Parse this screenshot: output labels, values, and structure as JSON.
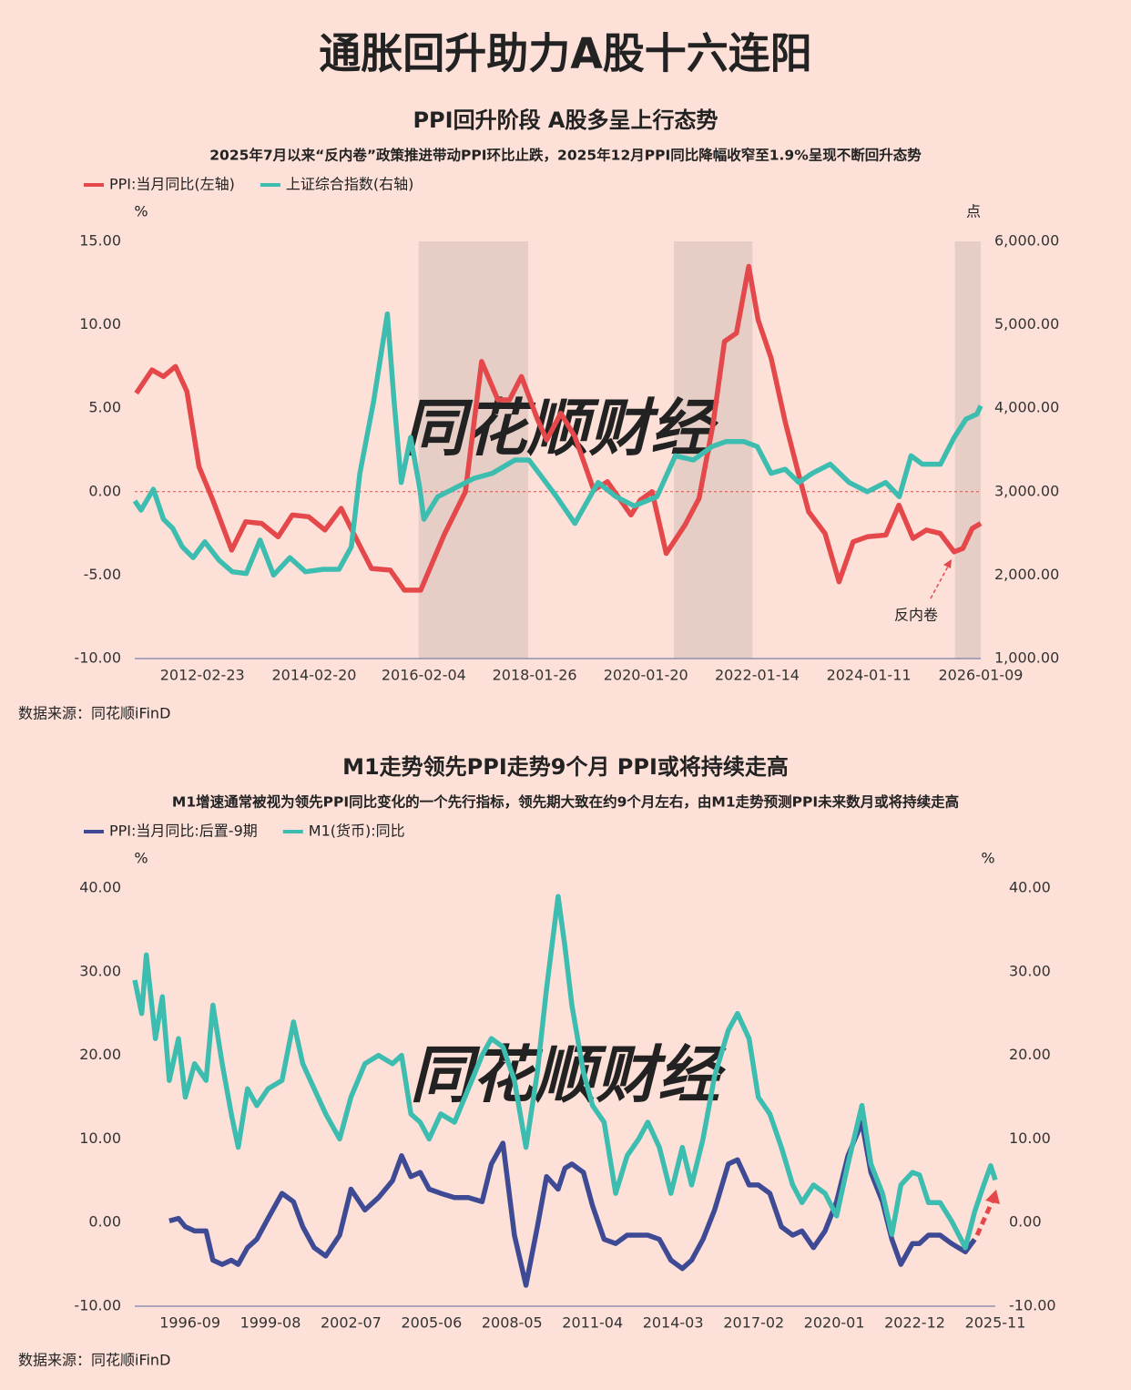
{
  "title": "通胀回升助力A股十六连阳",
  "chart_data": [
    {
      "type": "line",
      "title": "PPI回升阶段 A股多呈上行态势",
      "subtitle": "2025年7月以来“反内卷”政策推进带动PPI环比止跌，2025年12月PPI同比降幅收窄至1.9%呈现不断回升态势",
      "y_unit": "%",
      "y2_unit": "点",
      "watermark": "同花顺财经",
      "annotation": "反内卷",
      "source": "数据来源：同花顺iFinD",
      "zero_line": true,
      "xlim": [
        "2010-12-10",
        "2026-01-09"
      ],
      "xticks": [
        "2012-02-23",
        "2014-02-20",
        "2016-02-04",
        "2018-01-26",
        "2020-01-20",
        "2022-01-14",
        "2024-01-11",
        "2026-01-09"
      ],
      "ylim": [
        -10,
        15
      ],
      "yticks": [
        {
          "value": -10,
          "label": "-10.00"
        },
        {
          "value": -5,
          "label": "-5.00"
        },
        {
          "value": 0,
          "label": "0.00"
        },
        {
          "value": 5,
          "label": "5.00"
        },
        {
          "value": 10,
          "label": "10.00"
        },
        {
          "value": 15,
          "label": "15.00"
        }
      ],
      "y2lim": [
        1000,
        6000
      ],
      "y2ticks": [
        {
          "value": 1000,
          "label": "1,000.00"
        },
        {
          "value": 2000,
          "label": "2,000.00"
        },
        {
          "value": 3000,
          "label": "3,000.00"
        },
        {
          "value": 4000,
          "label": "4,000.00"
        },
        {
          "value": 5000,
          "label": "5,000.00"
        },
        {
          "value": 6000,
          "label": "6,000.00"
        }
      ],
      "shaded_periods": [
        [
          "2016-01-01",
          "2017-12-15"
        ],
        [
          "2020-07-20",
          "2021-12-15"
        ],
        [
          "2025-07-25",
          "2026-01-09"
        ]
      ],
      "series": [
        {
          "name": "PPI:当月同比(左轴)",
          "color": "#e5484a",
          "axis": "y",
          "x": [
            "2010-12-20",
            "2011-04-01",
            "2011-06-15",
            "2011-09-01",
            "2011-11-15",
            "2012-02-01",
            "2012-05-01",
            "2012-09-01",
            "2012-12-01",
            "2013-03-15",
            "2013-07-01",
            "2013-10-01",
            "2014-01-15",
            "2014-05-01",
            "2014-08-15",
            "2014-12-01",
            "2015-03-01",
            "2015-07-01",
            "2015-10-01",
            "2016-01-15",
            "2016-06-15",
            "2016-11-01",
            "2017-02-15",
            "2017-06-01",
            "2017-08-15",
            "2017-11-01",
            "2018-02-15",
            "2018-04-15",
            "2018-07-15",
            "2018-10-15",
            "2019-02-15",
            "2019-05-15",
            "2019-10-15",
            "2019-12-15",
            "2020-03-01",
            "2020-06-01",
            "2020-10-01",
            "2021-01-01",
            "2021-04-01",
            "2021-06-15",
            "2021-09-01",
            "2021-11-20",
            "2022-01-20",
            "2022-04-15",
            "2022-07-15",
            "2022-10-15",
            "2022-12-15",
            "2023-04-01",
            "2023-07-01",
            "2023-10-01",
            "2024-01-01",
            "2024-05-01",
            "2024-07-25",
            "2024-10-25",
            "2025-01-20",
            "2025-04-20",
            "2025-07-20",
            "2025-09-15",
            "2025-11-15",
            "2026-01-09"
          ],
          "values": [
            5.9,
            7.3,
            6.9,
            7.5,
            6.0,
            1.5,
            -0.5,
            -3.5,
            -1.8,
            -1.9,
            -2.7,
            -1.4,
            -1.5,
            -2.3,
            -1.0,
            -3.0,
            -4.6,
            -4.7,
            -5.9,
            -5.9,
            -2.6,
            0.0,
            7.8,
            5.5,
            5.5,
            6.9,
            4.3,
            3.1,
            4.7,
            3.3,
            0.1,
            0.6,
            -1.4,
            -0.5,
            0.0,
            -3.7,
            -2.0,
            -0.4,
            4.0,
            9.0,
            9.5,
            13.5,
            10.3,
            8.0,
            4.2,
            0.9,
            -1.2,
            -2.5,
            -5.4,
            -3.0,
            -2.7,
            -2.6,
            -0.8,
            -2.8,
            -2.3,
            -2.5,
            -3.6,
            -3.4,
            -2.2,
            -1.9
          ]
        },
        {
          "name": "上证综合指数(右轴)",
          "color": "#3dbdaf",
          "axis": "y2",
          "x": [
            "2010-12-10",
            "2011-01-20",
            "2011-04-10",
            "2011-06-15",
            "2011-08-15",
            "2011-10-15",
            "2011-12-25",
            "2012-03-10",
            "2012-06-10",
            "2012-09-05",
            "2012-12-05",
            "2013-03-05",
            "2013-06-01",
            "2013-09-15",
            "2013-12-25",
            "2014-04-20",
            "2014-08-01",
            "2014-10-20",
            "2014-12-15",
            "2015-03-15",
            "2015-06-12",
            "2015-07-25",
            "2015-09-10",
            "2015-11-10",
            "2016-01-08",
            "2016-02-05",
            "2016-05-05",
            "2016-09-01",
            "2016-12-28",
            "2017-04-25",
            "2017-09-20",
            "2017-12-20",
            "2018-03-20",
            "2018-06-18",
            "2018-10-15",
            "2019-03-15",
            "2019-07-10",
            "2019-11-05",
            "2020-04-01",
            "2020-07-30",
            "2020-11-25",
            "2021-03-25",
            "2021-06-25",
            "2021-10-20",
            "2022-01-15",
            "2022-04-15",
            "2022-07-15",
            "2022-10-12",
            "2023-01-08",
            "2023-05-05",
            "2023-09-05",
            "2024-01-01",
            "2024-04-30",
            "2024-07-28",
            "2024-10-12",
            "2024-12-25",
            "2025-04-22",
            "2025-07-20",
            "2025-10-05",
            "2025-12-15",
            "2026-01-09"
          ],
          "values": [
            2890,
            2780,
            3030,
            2670,
            2560,
            2340,
            2210,
            2400,
            2180,
            2040,
            2020,
            2420,
            2000,
            2210,
            2040,
            2070,
            2070,
            2340,
            3220,
            4090,
            5130,
            4090,
            3110,
            3650,
            3050,
            2670,
            2940,
            3050,
            3160,
            3220,
            3380,
            3380,
            3160,
            2940,
            2620,
            3110,
            2940,
            2830,
            2940,
            3430,
            3380,
            3540,
            3600,
            3600,
            3540,
            3220,
            3270,
            3110,
            3220,
            3330,
            3110,
            3000,
            3110,
            2940,
            3430,
            3330,
            3330,
            3650,
            3870,
            3930,
            4030
          ]
        }
      ]
    },
    {
      "type": "line",
      "title": "M1走势领先PPI走势9个月 PPI或将持续走高",
      "subtitle": "M1增速通常被视为领先PPI同比变化的一个先行指标，领先期大致在约9个月左右，由M1走势预测PPI未来数月或将持续走高",
      "y_unit": "%",
      "y2_unit": "%",
      "watermark": "同花顺财经",
      "source": "数据来源：同花顺iFinD",
      "zero_line": false,
      "xlim": [
        "1994-09",
        "2025-11"
      ],
      "xticks": [
        "1996-09",
        "1999-08",
        "2002-07",
        "2005-06",
        "2008-05",
        "2011-04",
        "2014-03",
        "2017-02",
        "2020-01",
        "2022-12",
        "2025-11"
      ],
      "ylim": [
        -10,
        40
      ],
      "yticks": [
        {
          "value": -10,
          "label": "-10.00"
        },
        {
          "value": 0,
          "label": "0.00"
        },
        {
          "value": 10,
          "label": "10.00"
        },
        {
          "value": 20,
          "label": "20.00"
        },
        {
          "value": 30,
          "label": "30.00"
        },
        {
          "value": 40,
          "label": "40.00"
        }
      ],
      "y2lim": [
        -10,
        40
      ],
      "y2ticks": [
        {
          "value": -10,
          "label": "-10.00"
        },
        {
          "value": 0,
          "label": "0.00"
        },
        {
          "value": 10,
          "label": "10.00"
        },
        {
          "value": 20,
          "label": "20.00"
        },
        {
          "value": 30,
          "label": "30.00"
        },
        {
          "value": 40,
          "label": "40.00"
        }
      ],
      "series": [
        {
          "name": "PPI:当月同比:后置-9期",
          "color": "#3e4b94",
          "axis": "y",
          "x": [
            "1995-12",
            "1996-04",
            "1996-07",
            "1996-11",
            "1997-04",
            "1997-07",
            "1997-11",
            "1998-03",
            "1998-06",
            "1998-10",
            "1999-02",
            "1999-07",
            "2000-01",
            "2000-06",
            "2000-10",
            "2001-03",
            "2001-08",
            "2002-02",
            "2002-07",
            "2003-01",
            "2003-07",
            "2004-01",
            "2004-05",
            "2004-09",
            "2005-01",
            "2005-05",
            "2005-10",
            "2006-04",
            "2006-10",
            "2007-04",
            "2007-08",
            "2008-01",
            "2008-06",
            "2008-11",
            "2009-04",
            "2009-08",
            "2010-01",
            "2010-04",
            "2010-07",
            "2010-12",
            "2011-04",
            "2011-09",
            "2012-02",
            "2012-07",
            "2012-12",
            "2013-04",
            "2013-09",
            "2014-02",
            "2014-07",
            "2014-11",
            "2015-04",
            "2015-09",
            "2016-03",
            "2016-07",
            "2016-12",
            "2017-04",
            "2017-09",
            "2018-02",
            "2018-07",
            "2018-11",
            "2019-04",
            "2019-09",
            "2020-02",
            "2020-07",
            "2021-01",
            "2021-05",
            "2021-10",
            "2022-02",
            "2022-06",
            "2022-11",
            "2023-02",
            "2023-06",
            "2023-11",
            "2024-04",
            "2024-10",
            "2025-02"
          ],
          "values": [
            0.2,
            0.5,
            -0.5,
            -1,
            -1,
            -4.5,
            -5,
            -4.5,
            -5,
            -3,
            -2,
            0.5,
            3.5,
            2.5,
            -0.5,
            -3,
            -4,
            -1.5,
            4,
            1.5,
            3,
            5,
            8,
            5.5,
            6,
            4,
            3.5,
            3,
            3,
            2.5,
            7,
            9.5,
            -1.5,
            -7.5,
            -0.5,
            5.5,
            4,
            6.5,
            7,
            6,
            2,
            -2,
            -2.5,
            -1.5,
            -1.5,
            -1.5,
            -2,
            -4.5,
            -5.5,
            -4.5,
            -2,
            1.5,
            7,
            7.5,
            4.5,
            4.5,
            3.5,
            -0.5,
            -1.5,
            -1,
            -3,
            -1,
            2.5,
            8,
            12,
            6,
            2.5,
            -2,
            -5,
            -2.5,
            -2.5,
            -1.5,
            -1.5,
            -2.5,
            -3.5,
            -2
          ]
        },
        {
          "name": "M1(货币):同比",
          "color": "#3dbdaf",
          "axis": "y",
          "x": [
            "1994-09",
            "1994-12",
            "1995-02",
            "1995-06",
            "1995-09",
            "1995-12",
            "1996-04",
            "1996-07",
            "1996-11",
            "1997-04",
            "1997-07",
            "1997-11",
            "1998-03",
            "1998-06",
            "1998-10",
            "1999-02",
            "1999-07",
            "2000-01",
            "2000-06",
            "2000-10",
            "2001-03",
            "2001-08",
            "2002-02",
            "2002-07",
            "2003-01",
            "2003-07",
            "2004-01",
            "2004-05",
            "2004-09",
            "2005-01",
            "2005-05",
            "2005-10",
            "2006-04",
            "2006-10",
            "2007-04",
            "2007-08",
            "2008-01",
            "2008-06",
            "2008-11",
            "2009-04",
            "2009-08",
            "2010-01",
            "2010-04",
            "2010-07",
            "2010-12",
            "2011-04",
            "2011-09",
            "2012-02",
            "2012-07",
            "2012-12",
            "2013-04",
            "2013-09",
            "2014-02",
            "2014-07",
            "2014-11",
            "2015-04",
            "2015-09",
            "2016-03",
            "2016-07",
            "2016-12",
            "2017-04",
            "2017-09",
            "2018-02",
            "2018-07",
            "2018-11",
            "2019-04",
            "2019-09",
            "2020-02",
            "2020-07",
            "2021-01",
            "2021-05",
            "2021-10",
            "2022-02",
            "2022-06",
            "2022-11",
            "2023-02",
            "2023-06",
            "2023-11",
            "2024-04",
            "2024-10",
            "2025-02",
            "2025-06",
            "2025-09",
            "2025-11"
          ],
          "values": [
            29,
            25,
            32,
            22,
            27,
            17,
            22,
            15,
            19,
            17,
            26,
            19,
            13,
            9,
            16,
            14,
            16,
            17,
            24,
            19,
            16,
            13,
            10,
            15,
            19,
            20,
            19,
            20,
            13,
            12,
            10,
            13,
            12,
            16,
            20,
            22,
            21,
            17,
            9,
            18,
            28,
            39,
            33,
            26,
            18,
            14,
            12,
            3.5,
            8,
            10,
            12,
            9,
            3.5,
            9,
            4.5,
            10,
            17.5,
            23,
            25,
            22,
            15,
            13,
            9,
            4.5,
            2.4,
            4.5,
            3.5,
            0.8,
            7,
            14,
            7,
            3.5,
            -1.4,
            4.5,
            6,
            5.7,
            2.4,
            2.4,
            0.2,
            -3,
            1.3,
            4.5,
            6.8,
            5.1
          ]
        }
      ]
    }
  ]
}
